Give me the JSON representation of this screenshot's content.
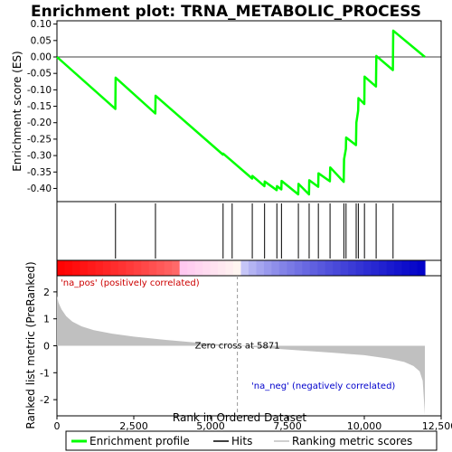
{
  "chart_data": {
    "type": "line",
    "title": "Enrichment plot: TRNA_METABOLIC_PROCESS",
    "top_panel": {
      "ylabel": "Enrichment score (ES)",
      "ylim": [
        -0.44,
        0.11
      ],
      "yticks": [
        0.1,
        0.05,
        0.0,
        -0.05,
        -0.1,
        -0.15,
        -0.2,
        -0.25,
        -0.3,
        -0.35,
        -0.4
      ],
      "ytick_labels": [
        "0.10",
        "0.05",
        "0.00",
        "-0.05",
        "-0.10",
        "-0.15",
        "-0.20",
        "-0.25",
        "-0.30",
        "-0.35",
        "-0.40"
      ],
      "baseline": 0.0,
      "color": "#00ff00",
      "x": [
        0,
        1900,
        1910,
        3200,
        3210,
        5400,
        5410,
        6350,
        6360,
        6750,
        6760,
        7150,
        7160,
        7300,
        7310,
        7850,
        7860,
        8200,
        8210,
        8500,
        8510,
        8880,
        8890,
        9330,
        9340,
        9400,
        9410,
        9730,
        9740,
        9800,
        9810,
        10000,
        10010,
        10380,
        10390,
        10930,
        10940,
        11970
      ],
      "y": [
        0.0,
        -0.158,
        -0.063,
        -0.172,
        -0.118,
        -0.297,
        -0.294,
        -0.37,
        -0.362,
        -0.393,
        -0.379,
        -0.405,
        -0.393,
        -0.403,
        -0.377,
        -0.418,
        -0.386,
        -0.418,
        -0.375,
        -0.395,
        -0.354,
        -0.378,
        -0.336,
        -0.38,
        -0.311,
        -0.28,
        -0.245,
        -0.268,
        -0.2,
        -0.163,
        -0.125,
        -0.143,
        -0.06,
        -0.09,
        0.003,
        -0.04,
        0.08,
        0.0
      ]
    },
    "hits": [
      1905,
      3205,
      5405,
      5700,
      6355,
      6755,
      7155,
      7305,
      7855,
      8205,
      8505,
      8885,
      9335,
      9405,
      9735,
      9805,
      10005,
      10385,
      10935
    ],
    "bottom_panel": {
      "ylabel": "Ranked list metric (PreRanked)",
      "ylim": [
        -2.6,
        2.6
      ],
      "yticks": [
        2,
        1,
        0,
        -1,
        -2
      ],
      "ytick_labels": [
        "2",
        "1",
        "0",
        "-1",
        "-2"
      ],
      "metric_x": [
        0,
        50,
        150,
        300,
        500,
        800,
        1200,
        1800,
        2500,
        3500,
        4500,
        5871,
        7000,
        8000,
        9000,
        10000,
        10800,
        11300,
        11600,
        11800,
        11900,
        11970
      ],
      "metric_y": [
        1.85,
        1.6,
        1.35,
        1.1,
        0.9,
        0.72,
        0.58,
        0.45,
        0.34,
        0.22,
        0.12,
        0.0,
        -0.1,
        -0.18,
        -0.26,
        -0.35,
        -0.48,
        -0.6,
        -0.75,
        -0.95,
        -1.3,
        -2.55
      ],
      "fill": "#c0c0c0",
      "zero_cross_label": "Zero cross at 5871",
      "zero_cross_x": 5871,
      "pos_label": "'na_pos' (positively correlated)",
      "neg_label": "'na_neg' (negatively correlated)",
      "pos_color": "#cc0000",
      "neg_color": "#0000cc"
    },
    "xlabel": "Rank in Ordered Dataset",
    "xlim": [
      0,
      12500
    ],
    "xticks": [
      0,
      2500,
      5000,
      7500,
      10000,
      12500
    ],
    "xtick_labels": [
      "0",
      "2,500",
      "5,000",
      "7,500",
      "10,000",
      "12,500"
    ],
    "n_genes": 11970,
    "legend": {
      "position": "bottom",
      "entries": [
        {
          "label": "Enrichment profile",
          "color": "#00ff00"
        },
        {
          "label": "Hits",
          "color": "#000000"
        },
        {
          "label": "Ranking metric scores",
          "color": "#c0c0c0"
        }
      ]
    }
  }
}
